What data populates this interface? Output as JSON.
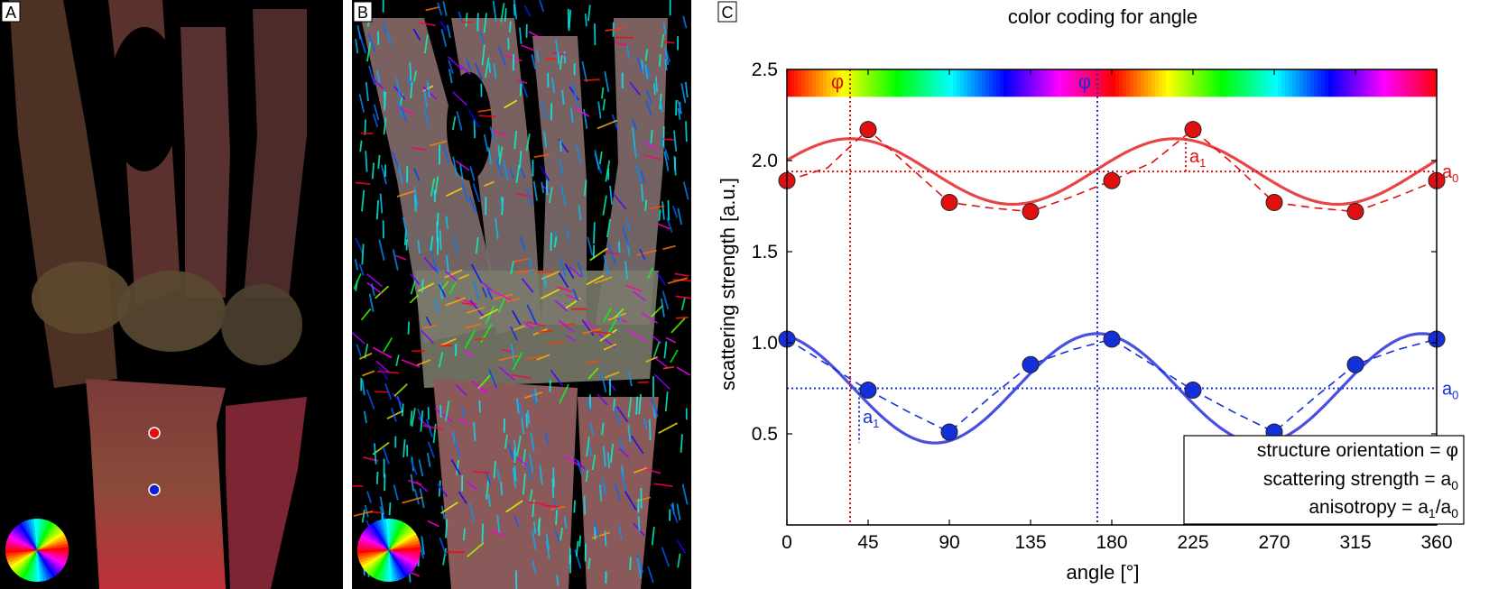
{
  "panels": {
    "a": {
      "label": "A"
    },
    "b": {
      "label": "B"
    },
    "c": {
      "label": "C"
    }
  },
  "colors": {
    "red_series": "#e84646",
    "blue_series": "#4a4fe0",
    "red_marker": "#e01010",
    "blue_marker": "#1020d0",
    "image_background": "#000000"
  },
  "legend_box": {
    "line1": "structure orientation = φ",
    "line2_prefix": "scattering strength = a",
    "line2_sub": "0",
    "line3_prefix": "anisotropy = a",
    "line3_sub1": "1",
    "line3_mid": "/a",
    "line3_sub2": "0"
  },
  "chart_data": {
    "type": "line",
    "title": "color coding for angle",
    "xlabel": "angle [°]",
    "ylabel": "scattering strength [a.u.]",
    "xlim": [
      0,
      360
    ],
    "ylim": [
      0,
      2.5
    ],
    "x_ticks": [
      "0",
      "45",
      "90",
      "135",
      "180",
      "225",
      "270",
      "315",
      "360"
    ],
    "y_ticks": [
      "0.5",
      "1.0",
      "1.5",
      "2.0",
      "2.5"
    ],
    "grid": false,
    "colorbar": {
      "label": "color coding for angle",
      "y_range": [
        2.35,
        2.5
      ]
    },
    "series": [
      {
        "key": "red",
        "measured": {
          "x": [
            0,
            22.5,
            45,
            67.5,
            90,
            112.5,
            135,
            157.5,
            180,
            202.5,
            225,
            247.5,
            270,
            292.5,
            315,
            337.5,
            360
          ],
          "y": [
            1.89,
            1.96,
            2.17,
            1.97,
            1.77,
            1.74,
            1.72,
            1.8,
            1.89,
            1.99,
            2.17,
            1.98,
            1.77,
            1.74,
            1.72,
            1.8,
            1.89
          ]
        },
        "fit": {
          "a0": 1.94,
          "a1": 0.18,
          "phi": 35
        },
        "annotations": {
          "phi_label": "φ",
          "a0_label": "a",
          "a0_sub": "0",
          "a1_label": "a",
          "a1_sub": "1"
        }
      },
      {
        "key": "blue",
        "measured": {
          "x": [
            0,
            22.5,
            45,
            67.5,
            90,
            112.5,
            135,
            157.5,
            180,
            202.5,
            225,
            247.5,
            270,
            292.5,
            315,
            337.5,
            360
          ],
          "y": [
            1.02,
            0.88,
            0.74,
            0.62,
            0.51,
            0.7,
            0.88,
            0.96,
            1.02,
            0.88,
            0.74,
            0.62,
            0.51,
            0.7,
            0.88,
            0.96,
            1.02
          ]
        },
        "fit": {
          "a0": 0.75,
          "a1": 0.3,
          "phi": 172
        },
        "annotations": {
          "phi_label": "φ",
          "a0_label": "a",
          "a0_sub": "0",
          "a1_label": "a",
          "a1_sub": "1"
        }
      }
    ]
  }
}
